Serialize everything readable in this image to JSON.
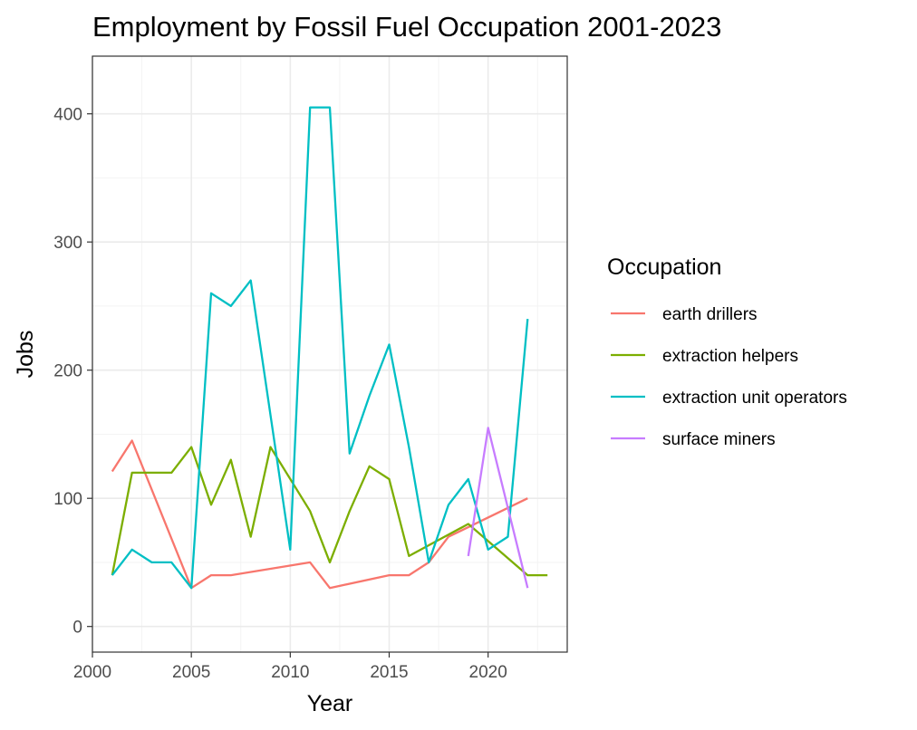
{
  "chart_data": {
    "type": "line",
    "title": "Employment by Fossil Fuel Occupation 2001-2023",
    "xlabel": "Year",
    "ylabel": "Jobs",
    "xlim": [
      2000,
      2024
    ],
    "ylim": [
      -20,
      445
    ],
    "x_ticks": [
      2000,
      2005,
      2010,
      2015,
      2020
    ],
    "y_ticks": [
      0,
      100,
      200,
      300,
      400
    ],
    "grid": true,
    "legend": {
      "title": "Occupation",
      "position": "right"
    },
    "series": [
      {
        "name": "earth drillers",
        "color": "#F8766D",
        "points": [
          [
            2001,
            121
          ],
          [
            2002,
            145
          ],
          [
            2005,
            30
          ],
          [
            2006,
            40
          ],
          [
            2007,
            40
          ],
          [
            2011,
            50
          ],
          [
            2012,
            30
          ],
          [
            2015,
            40
          ],
          [
            2016,
            40
          ],
          [
            2017,
            50
          ],
          [
            2018,
            70
          ],
          [
            2022,
            100
          ]
        ]
      },
      {
        "name": "extraction helpers",
        "color": "#7CAE00",
        "points": [
          [
            2001,
            40
          ],
          [
            2002,
            120
          ],
          [
            2003,
            120
          ],
          [
            2004,
            120
          ],
          [
            2005,
            140
          ],
          [
            2006,
            95
          ],
          [
            2007,
            130
          ],
          [
            2008,
            70
          ],
          [
            2009,
            140
          ],
          [
            2011,
            90
          ],
          [
            2012,
            50
          ],
          [
            2013,
            90
          ],
          [
            2014,
            125
          ],
          [
            2015,
            115
          ],
          [
            2016,
            55
          ],
          [
            2019,
            80
          ],
          [
            2022,
            40
          ],
          [
            2023,
            40
          ]
        ]
      },
      {
        "name": "extraction unit operators",
        "color": "#00BFC4",
        "points": [
          [
            2001,
            40
          ],
          [
            2002,
            60
          ],
          [
            2003,
            50
          ],
          [
            2004,
            50
          ],
          [
            2005,
            30
          ],
          [
            2006,
            260
          ],
          [
            2007,
            250
          ],
          [
            2008,
            270
          ],
          [
            2010,
            60
          ],
          [
            2011,
            405
          ],
          [
            2012,
            405
          ],
          [
            2013,
            135
          ],
          [
            2014,
            180
          ],
          [
            2015,
            220
          ],
          [
            2016,
            140
          ],
          [
            2017,
            50
          ],
          [
            2018,
            95
          ],
          [
            2019,
            115
          ],
          [
            2020,
            60
          ],
          [
            2021,
            70
          ],
          [
            2022,
            240
          ]
        ]
      },
      {
        "name": "surface miners",
        "color": "#C77CFF",
        "points": [
          [
            2019,
            55
          ],
          [
            2020,
            155
          ],
          [
            2022,
            30
          ]
        ]
      }
    ]
  }
}
